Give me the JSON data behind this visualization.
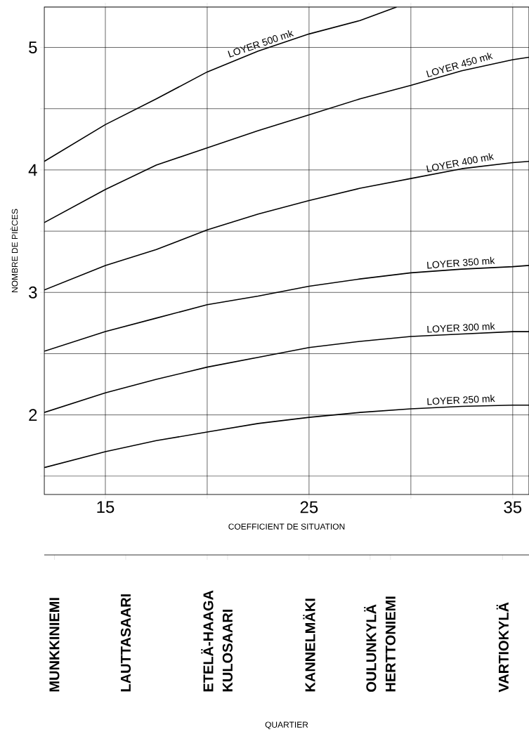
{
  "chart_data": [
    {
      "type": "line",
      "xlabel": "COEFFICIENT DE SITUATION",
      "ylabel": "NOMBRE DE PIÈCES",
      "xlim": [
        12,
        35.8
      ],
      "ylim": [
        1.35,
        5.33
      ],
      "xticks": [
        15,
        {
          "value": 20,
          "label": null
        },
        25,
        {
          "value": 30,
          "label": null
        },
        35
      ],
      "yticks": [
        {
          "value": 1.5,
          "label": null
        },
        2,
        {
          "value": 2.5,
          "label": null
        },
        3,
        {
          "value": 3.5,
          "label": null
        },
        4,
        {
          "value": 4.5,
          "label": null
        },
        5
      ],
      "grid": true,
      "legend": false,
      "marker": "none",
      "line_style": "solid",
      "series": [
        {
          "name": "LOYER 250 mk",
          "color": "#000000",
          "x": [
            12,
            15,
            17.5,
            20,
            22.5,
            25,
            27.5,
            30,
            32.5,
            35,
            35.8
          ],
          "values": [
            1.57,
            1.7,
            1.79,
            1.86,
            1.93,
            1.98,
            2.02,
            2.05,
            2.07,
            2.08,
            2.08
          ]
        },
        {
          "name": "LOYER 300 mk",
          "color": "#000000",
          "x": [
            12,
            15,
            17.5,
            20,
            22.5,
            25,
            27.5,
            30,
            32.5,
            35,
            35.8
          ],
          "values": [
            2.02,
            2.18,
            2.29,
            2.39,
            2.47,
            2.55,
            2.6,
            2.64,
            2.66,
            2.68,
            2.68
          ]
        },
        {
          "name": "LOYER 350 mk",
          "color": "#000000",
          "x": [
            12,
            15,
            17.5,
            20,
            22.5,
            25,
            27.5,
            30,
            32.5,
            35,
            35.8
          ],
          "values": [
            2.52,
            2.68,
            2.79,
            2.9,
            2.97,
            3.05,
            3.11,
            3.16,
            3.19,
            3.21,
            3.22
          ]
        },
        {
          "name": "LOYER 400 mk",
          "color": "#000000",
          "x": [
            12,
            15,
            17.5,
            20,
            22.5,
            25,
            27.5,
            30,
            32.5,
            35,
            35.8
          ],
          "values": [
            3.02,
            3.22,
            3.35,
            3.51,
            3.64,
            3.75,
            3.85,
            3.93,
            4.01,
            4.06,
            4.07
          ]
        },
        {
          "name": "LOYER 450 mk",
          "color": "#000000",
          "x": [
            12,
            15,
            17.5,
            20,
            22.5,
            25,
            27.5,
            30,
            32.5,
            35,
            35.8
          ],
          "values": [
            3.57,
            3.84,
            4.04,
            4.18,
            4.32,
            4.45,
            4.58,
            4.69,
            4.81,
            4.9,
            4.92
          ]
        },
        {
          "name": "LOYER 500 mk",
          "color": "#000000",
          "x": [
            12,
            15,
            17.5,
            20,
            22.5,
            25,
            27.5,
            29.3
          ],
          "values": [
            4.07,
            4.37,
            4.58,
            4.8,
            4.97,
            5.11,
            5.22,
            5.33
          ]
        }
      ]
    },
    {
      "type": "other",
      "xlabel": "QUARTIER",
      "categories": [
        null,
        "MUNKKINIEMI",
        null,
        null,
        null,
        null,
        null,
        null,
        "LAUTTASAARI",
        null,
        null,
        null,
        null,
        null,
        null,
        null,
        "ETELÄ-HAAGA",
        null,
        "KULOSAARI",
        null,
        null,
        null,
        null,
        null,
        null,
        null,
        "KANNELMÄKI",
        null,
        null,
        null,
        null,
        null,
        "OULUNKYLÄ",
        null,
        "HERTTONIEMI",
        null,
        null,
        null,
        null,
        null,
        null,
        null,
        null,
        null,
        null,
        "VARTIOKYLÄ",
        null,
        null
      ]
    }
  ]
}
